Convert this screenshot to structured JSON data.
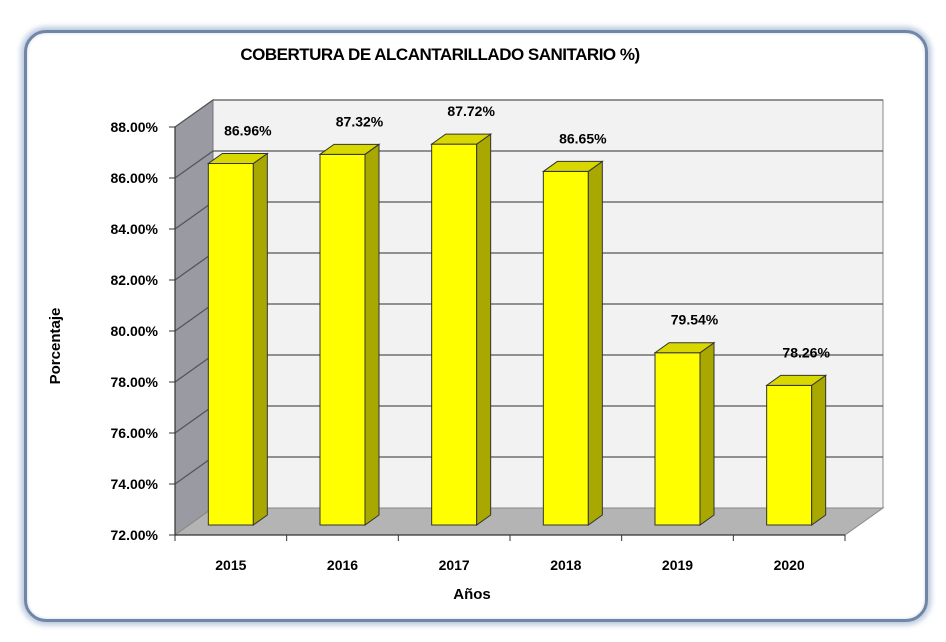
{
  "chart_data": {
    "type": "bar",
    "title": "COBERTURA DE ALCANTARILLADO SANITARIO %)",
    "xlabel": "Años",
    "ylabel": "Porcentaje",
    "categories": [
      "2015",
      "2016",
      "2017",
      "2018",
      "2019",
      "2020"
    ],
    "values": [
      86.96,
      87.32,
      87.72,
      86.65,
      79.54,
      78.26
    ],
    "data_labels": [
      "86.96%",
      "87.32%",
      "87.72%",
      "86.65%",
      "79.54%",
      "78.26%"
    ],
    "ylim": [
      72,
      88
    ],
    "yticks": [
      "72.00%",
      "74.00%",
      "76.00%",
      "78.00%",
      "80.00%",
      "82.00%",
      "84.00%",
      "86.00%",
      "88.00%"
    ],
    "grid": true,
    "style": "3d-column",
    "colors": {
      "bar": "#ffff00",
      "bar_side": "#a8a800",
      "bar_top": "#d8d800",
      "wall": "#f2f2f2",
      "floor": "#b4b4b4",
      "frame": "#6f86a6"
    }
  }
}
